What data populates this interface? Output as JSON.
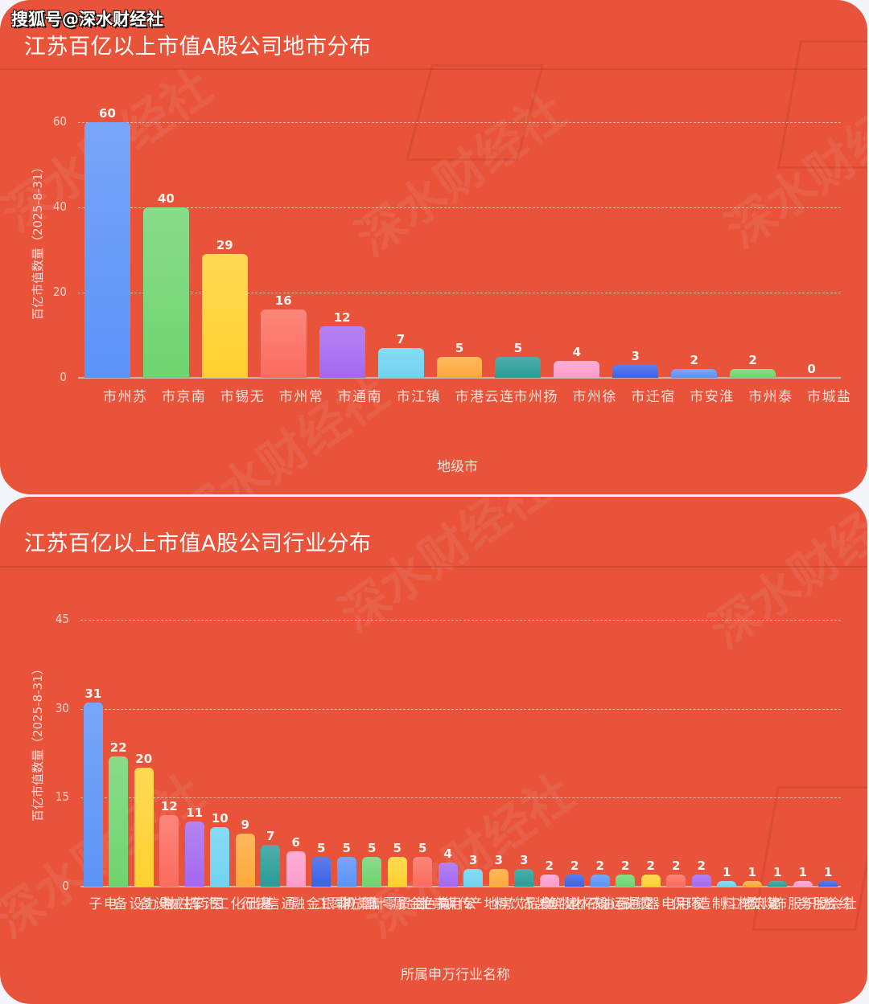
{
  "watermark": "搜狐号@深水财经社",
  "background_watermark": "深水财经社",
  "colors": {
    "card_bg": "#e8533a",
    "page_bg": "#f4f5fa",
    "palette": [
      "#5b93f7",
      "#6fd46f",
      "#ffd12f",
      "#fb6c5e",
      "#a468f0",
      "#6fd3f2",
      "#ffa93a",
      "#279d96",
      "#ff9ccb",
      "#3a62e6"
    ]
  },
  "chart1": {
    "title": "江苏百亿以上市值A股公司地市分布",
    "ylabel": "百亿市值数量（2025-8-31）",
    "xlabel": "地级市",
    "yticks": [
      "0",
      "20",
      "40",
      "60"
    ]
  },
  "chart2": {
    "title": "江苏百亿以上市值A股公司行业分布",
    "ylabel": "百亿市值数量（2025-8-31）",
    "xlabel": "所属申万行业名称",
    "yticks": [
      "0",
      "15",
      "30",
      "45"
    ]
  },
  "chart_data": [
    {
      "type": "bar",
      "title": "江苏百亿以上市值A股公司地市分布",
      "xlabel": "地级市",
      "ylabel": "百亿市值数量（2025-8-31）",
      "ylim": [
        0,
        60
      ],
      "yticks": [
        0,
        20,
        40,
        60
      ],
      "grid": true,
      "categories": [
        "苏州市",
        "南京市",
        "无锡市",
        "常州市",
        "南通市",
        "镇江市",
        "连云港市",
        "扬州市",
        "徐州市",
        "宿迁市",
        "淮安市",
        "泰州市",
        "盐城市"
      ],
      "values": [
        60,
        40,
        29,
        16,
        12,
        7,
        5,
        5,
        4,
        3,
        2,
        2,
        0
      ],
      "colors": [
        "#5b93f7",
        "#6fd46f",
        "#ffd12f",
        "#fb6c5e",
        "#a468f0",
        "#6fd3f2",
        "#ffa93a",
        "#279d96",
        "#ff9ccb",
        "#3a62e6",
        "#5b93f7",
        "#6fd46f",
        "#ffd12f"
      ]
    },
    {
      "type": "bar",
      "title": "江苏百亿以上市值A股公司行业分布",
      "xlabel": "所属申万行业名称",
      "ylabel": "百亿市值数量（2025-8-31）",
      "ylim": [
        0,
        45
      ],
      "yticks": [
        0,
        15,
        30,
        45
      ],
      "grid": true,
      "categories": [
        "电子",
        "电力设备",
        "机械设备",
        "医药生物",
        "汽车",
        "基础化工",
        "银行",
        "通信",
        "非银金融",
        "国防军工",
        "计算机",
        "商贸零售",
        "有色金属",
        "公用事业",
        "传媒",
        "房地产",
        "食品饮料",
        "建筑装饰",
        "农林牧渔",
        "石油石化",
        "交通运输",
        "钢铁",
        "家用电器",
        "环保",
        "轻工制造",
        "建筑材料",
        "煤炭",
        "纺织服饰",
        "社会服务",
        "综合"
      ],
      "values": [
        31,
        22,
        20,
        12,
        11,
        10,
        9,
        7,
        6,
        5,
        5,
        5,
        5,
        5,
        4,
        3,
        3,
        3,
        2,
        2,
        2,
        2,
        2,
        2,
        2,
        1,
        1,
        1,
        1,
        1
      ],
      "colors": [
        "#5b93f7",
        "#6fd46f",
        "#ffd12f",
        "#fb6c5e",
        "#a468f0",
        "#6fd3f2",
        "#ffa93a",
        "#279d96",
        "#ff9ccb",
        "#3a62e6",
        "#5b93f7",
        "#6fd46f",
        "#ffd12f",
        "#fb6c5e",
        "#a468f0",
        "#6fd3f2",
        "#ffa93a",
        "#279d96",
        "#ff9ccb",
        "#3a62e6",
        "#5b93f7",
        "#6fd46f",
        "#ffd12f",
        "#fb6c5e",
        "#a468f0",
        "#6fd3f2",
        "#ffa93a",
        "#279d96",
        "#ff9ccb",
        "#3a62e6"
      ]
    }
  ]
}
